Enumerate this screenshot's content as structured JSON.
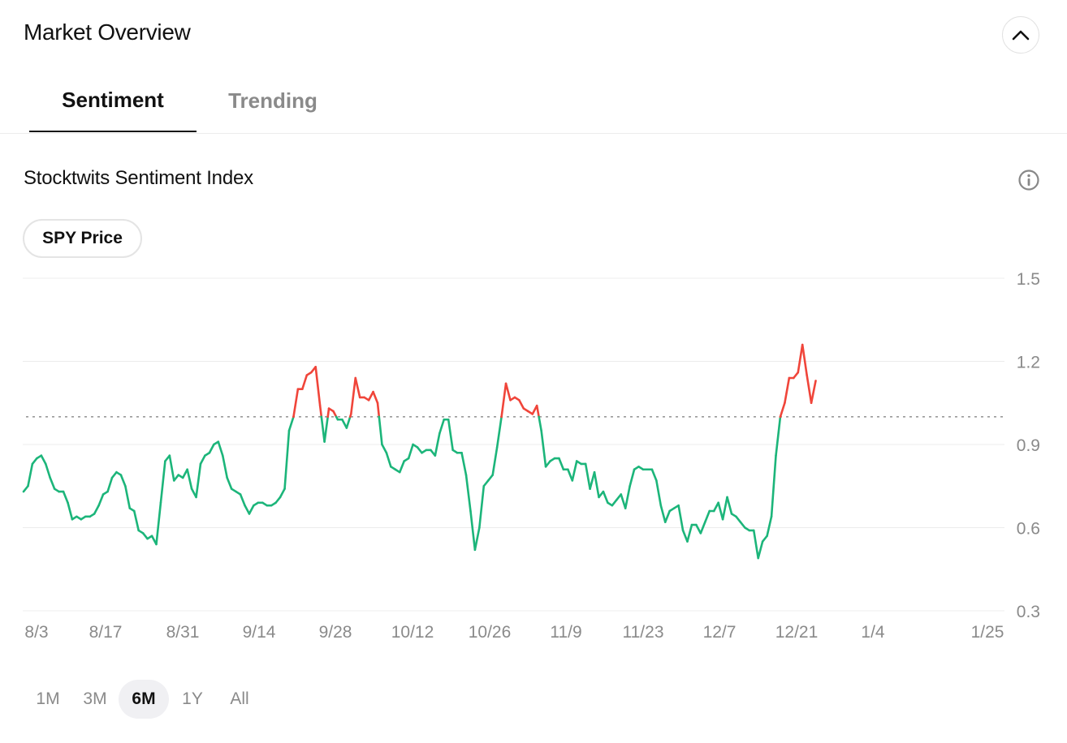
{
  "header": {
    "title": "Market Overview",
    "collapse_icon": "chevron-up-icon"
  },
  "tabs": [
    {
      "label": "Sentiment",
      "active": true
    },
    {
      "label": "Trending",
      "active": false
    }
  ],
  "section": {
    "title": "Stocktwits Sentiment Index",
    "info_icon": "info-icon"
  },
  "toggle": {
    "label": "SPY Price"
  },
  "ranges": [
    {
      "label": "1M",
      "active": false
    },
    {
      "label": "3M",
      "active": false
    },
    {
      "label": "6M",
      "active": true
    },
    {
      "label": "1Y",
      "active": false
    },
    {
      "label": "All",
      "active": false
    }
  ],
  "colors": {
    "bullish": "#1cb57a",
    "bearish": "#f0453a",
    "baseline": "#9a9a9a",
    "grid": "#ececec",
    "tick_text": "#8a8a8a"
  },
  "chart_data": {
    "type": "line",
    "title": "",
    "xlabel": "",
    "ylabel": "",
    "ylim": [
      0.3,
      1.5
    ],
    "yticks": [
      "1.5",
      "1.2",
      "0.9",
      "0.6",
      "0.3"
    ],
    "xticks": [
      "8/3",
      "8/17",
      "8/31",
      "9/14",
      "9/28",
      "10/12",
      "10/26",
      "11/9",
      "11/23",
      "12/7",
      "12/21",
      "1/4",
      "1/25"
    ],
    "baseline": 1.0,
    "grid": true,
    "series": [
      {
        "values": [
          0.73,
          0.75,
          0.83,
          0.85,
          0.86,
          0.83,
          0.78,
          0.74,
          0.73,
          0.73,
          0.69,
          0.63,
          0.64,
          0.63,
          0.64,
          0.64,
          0.65,
          0.68,
          0.72,
          0.73,
          0.78,
          0.8,
          0.79,
          0.75,
          0.67,
          0.66,
          0.59,
          0.58,
          0.56,
          0.57,
          0.54,
          0.69,
          0.84,
          0.86,
          0.77,
          0.79,
          0.78,
          0.81,
          0.74,
          0.71,
          0.83,
          0.86,
          0.87,
          0.9,
          0.91,
          0.86,
          0.78,
          0.74,
          0.73,
          0.72,
          0.68,
          0.65,
          0.68,
          0.69,
          0.69,
          0.68,
          0.68,
          0.69,
          0.71,
          0.74,
          0.95,
          1.0,
          1.1,
          1.1,
          1.15,
          1.16,
          1.18,
          1.04,
          0.91,
          1.03,
          1.02,
          0.99,
          0.99,
          0.96,
          1.01,
          1.14,
          1.07,
          1.07,
          1.06,
          1.09,
          1.05,
          0.9,
          0.87,
          0.82,
          0.81,
          0.8,
          0.84,
          0.85,
          0.9,
          0.89,
          0.87,
          0.88,
          0.88,
          0.86,
          0.94,
          0.99,
          0.99,
          0.88,
          0.87,
          0.87,
          0.79,
          0.66,
          0.52,
          0.6,
          0.75,
          0.77,
          0.79,
          0.89,
          1.0,
          1.12,
          1.06,
          1.07,
          1.06,
          1.03,
          1.02,
          1.01,
          1.04,
          0.95,
          0.82,
          0.84,
          0.85,
          0.85,
          0.81,
          0.81,
          0.77,
          0.84,
          0.83,
          0.83,
          0.74,
          0.8,
          0.71,
          0.73,
          0.69,
          0.68,
          0.7,
          0.72,
          0.67,
          0.75,
          0.81,
          0.82,
          0.81,
          0.81,
          0.81,
          0.77,
          0.68,
          0.62,
          0.66,
          0.67,
          0.68,
          0.59,
          0.55,
          0.61,
          0.61,
          0.58,
          0.62,
          0.66,
          0.66,
          0.69,
          0.63,
          0.71,
          0.65,
          0.64,
          0.62,
          0.6,
          0.59,
          0.59,
          0.49,
          0.55,
          0.57,
          0.64,
          0.86,
          1.0,
          1.05,
          1.14,
          1.14,
          1.16,
          1.26,
          1.15,
          1.05,
          1.13
        ]
      }
    ]
  }
}
